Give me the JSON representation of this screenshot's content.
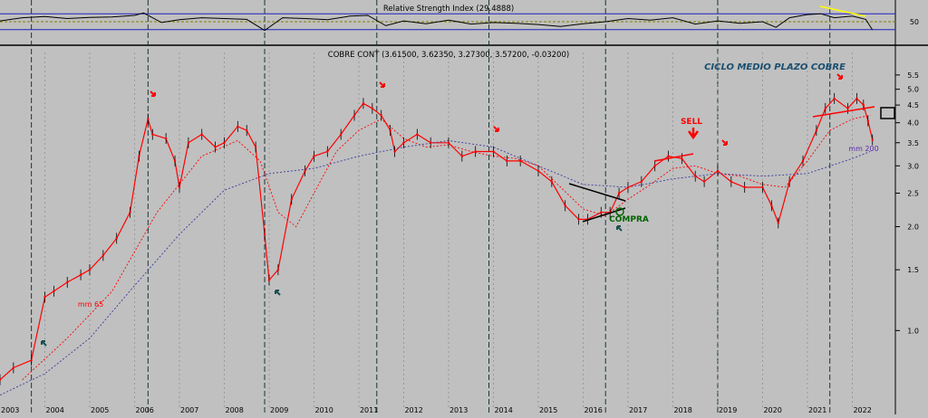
{
  "chart_data": [
    {
      "type": "line",
      "panel": "indicator",
      "title": "Relative Strength Index (29.4888)",
      "yticks": [
        50
      ],
      "reference_levels": [
        30,
        50,
        70
      ],
      "series": [
        {
          "name": "Relative Strength Index",
          "color": "#000000",
          "x": [
            2003.0,
            2003.5,
            2004.0,
            2004.5,
            2005.0,
            2005.5,
            2006.0,
            2006.2,
            2006.6,
            2007.0,
            2007.5,
            2008.0,
            2008.5,
            2008.8,
            2008.9,
            2009.3,
            2009.8,
            2010.3,
            2010.8,
            2011.2,
            2011.6,
            2012.0,
            2012.5,
            2013.0,
            2013.5,
            2014.0,
            2014.5,
            2015.0,
            2015.5,
            2016.0,
            2016.5,
            2017.0,
            2017.5,
            2018.0,
            2018.5,
            2019.0,
            2019.5,
            2020.0,
            2020.3,
            2020.6,
            2021.0,
            2021.3,
            2021.6,
            2022.0,
            2022.3,
            2022.45
          ],
          "y": [
            52,
            60,
            63,
            58,
            61,
            62,
            66,
            72,
            48,
            55,
            60,
            58,
            56,
            35,
            28,
            60,
            58,
            55,
            64,
            66,
            40,
            52,
            45,
            54,
            44,
            48,
            46,
            43,
            38,
            45,
            50,
            58,
            54,
            60,
            44,
            52,
            46,
            50,
            36,
            60,
            68,
            70,
            60,
            64,
            56,
            29.5
          ]
        }
      ]
    },
    {
      "type": "line",
      "panel": "price",
      "title": "COBRE CONT (3.61500, 3.62350, 3.27300, 3.57200, -0.03200)",
      "annotation_title": "CICLO MEDIO PLAZO COBRE",
      "y_scale": "log",
      "ylim": [
        0.6,
        6.2
      ],
      "xlim": [
        2003.0,
        2022.9
      ],
      "yticks": [
        1.0,
        1.5,
        2.0,
        2.5,
        3.0,
        3.5,
        4.0,
        4.5,
        5.0,
        5.5
      ],
      "ytick_labels": [
        "1.0",
        "1.5",
        "2.0",
        "2.5",
        "3.0",
        "3.5",
        "4.0",
        "4.5",
        "5.0",
        "5.5"
      ],
      "xticks": [
        2003,
        2004,
        2005,
        2006,
        2007,
        2008,
        2009,
        2010,
        2011,
        2012,
        2013,
        2014,
        2015,
        2016,
        2017,
        2018,
        2019,
        2020,
        2021,
        2022
      ],
      "xtick_labels": [
        "2003",
        "2004",
        "2005",
        "2006",
        "2007",
        "2008",
        "2009",
        "2010",
        "2011",
        "2012",
        "2013",
        "2014",
        "2015",
        "2016",
        "2017",
        "2018",
        "2019",
        "2020",
        "2021",
        "2022"
      ],
      "cycle_lines": [
        2003.7,
        2006.3,
        2008.9,
        2011.4,
        2013.9,
        2016.5,
        2019.0,
        2021.5
      ],
      "series": [
        {
          "name": "COBRE CONT",
          "color": "#ff0000",
          "x": [
            2003.0,
            2003.3,
            2003.7,
            2004.0,
            2004.2,
            2004.5,
            2004.8,
            2005.0,
            2005.3,
            2005.6,
            2005.9,
            2006.1,
            2006.3,
            2006.4,
            2006.7,
            2006.9,
            2007.0,
            2007.2,
            2007.5,
            2007.8,
            2008.0,
            2008.3,
            2008.5,
            2008.7,
            2008.9,
            2009.0,
            2009.2,
            2009.5,
            2009.8,
            2010.0,
            2010.3,
            2010.6,
            2010.9,
            2011.1,
            2011.3,
            2011.5,
            2011.7,
            2011.8,
            2012.0,
            2012.3,
            2012.6,
            2013.0,
            2013.3,
            2013.6,
            2014.0,
            2014.3,
            2014.6,
            2015.0,
            2015.3,
            2015.6,
            2015.9,
            2016.1,
            2016.4,
            2016.6,
            2016.8,
            2017.0,
            2017.3,
            2017.6,
            2017.9,
            2018.2,
            2018.5,
            2018.7,
            2019.0,
            2019.3,
            2019.6,
            2020.0,
            2020.2,
            2020.35,
            2020.6,
            2020.9,
            2021.2,
            2021.4,
            2021.6,
            2021.9,
            2022.1,
            2022.25,
            2022.35,
            2022.45
          ],
          "y": [
            0.72,
            0.78,
            0.82,
            1.25,
            1.3,
            1.38,
            1.45,
            1.5,
            1.65,
            1.85,
            2.2,
            3.2,
            4.1,
            3.7,
            3.6,
            3.1,
            2.6,
            3.5,
            3.7,
            3.4,
            3.5,
            3.9,
            3.8,
            3.4,
            1.9,
            1.4,
            1.5,
            2.4,
            2.9,
            3.2,
            3.3,
            3.7,
            4.2,
            4.55,
            4.4,
            4.2,
            3.8,
            3.3,
            3.5,
            3.7,
            3.5,
            3.5,
            3.2,
            3.3,
            3.3,
            3.1,
            3.1,
            2.9,
            2.7,
            2.3,
            2.1,
            2.1,
            2.2,
            2.2,
            2.5,
            2.6,
            2.7,
            3.0,
            3.2,
            3.15,
            2.8,
            2.7,
            2.9,
            2.7,
            2.6,
            2.6,
            2.3,
            2.05,
            2.7,
            3.1,
            3.8,
            4.4,
            4.7,
            4.4,
            4.7,
            4.5,
            4.05,
            3.57
          ]
        },
        {
          "name": "mm 65",
          "color": "#ff0000",
          "dashed": true,
          "x": [
            2003.5,
            2004.5,
            2005.5,
            2006.5,
            2007.5,
            2008.3,
            2008.8,
            2009.2,
            2009.6,
            2010.0,
            2010.5,
            2011.0,
            2011.5,
            2012.0,
            2012.5,
            2013.0,
            2013.5,
            2014.0,
            2014.5,
            2015.0,
            2015.5,
            2016.0,
            2016.5,
            2017.0,
            2017.5,
            2018.0,
            2018.5,
            2019.0,
            2019.5,
            2020.0,
            2020.5,
            2021.0,
            2021.5,
            2022.0,
            2022.4
          ],
          "y": [
            0.72,
            0.95,
            1.3,
            2.2,
            3.2,
            3.55,
            3.1,
            2.2,
            2.0,
            2.5,
            3.3,
            3.8,
            4.1,
            3.6,
            3.4,
            3.45,
            3.3,
            3.2,
            3.15,
            3.0,
            2.6,
            2.25,
            2.15,
            2.4,
            2.65,
            2.95,
            3.0,
            2.85,
            2.8,
            2.65,
            2.6,
            3.1,
            3.8,
            4.1,
            4.2
          ]
        },
        {
          "name": "mm 200",
          "color": "#3a3aa0",
          "dashed": true,
          "x": [
            2003.0,
            2004.0,
            2005.0,
            2006.0,
            2007.0,
            2008.0,
            2009.0,
            2010.0,
            2011.0,
            2012.0,
            2013.0,
            2014.0,
            2015.0,
            2016.0,
            2017.0,
            2018.0,
            2019.0,
            2020.0,
            2021.0,
            2022.0,
            2022.4
          ],
          "y": [
            0.65,
            0.75,
            0.95,
            1.35,
            1.9,
            2.55,
            2.85,
            2.95,
            3.2,
            3.4,
            3.55,
            3.4,
            3.0,
            2.65,
            2.6,
            2.75,
            2.85,
            2.8,
            2.85,
            3.15,
            3.3
          ]
        }
      ],
      "annotations": [
        {
          "text": "SELL",
          "x": 2018.2,
          "y": 3.85,
          "color": "#ff0000"
        },
        {
          "text": "COMPRA",
          "x": 2016.8,
          "y": 2.02,
          "color": "#006400"
        },
        {
          "text": "mm 65",
          "x": 2004.9,
          "y": 1.15,
          "color": "#ff0000"
        },
        {
          "text": "mm 200",
          "x": 2021.7,
          "y": 3.25,
          "color": "#5a2ab0"
        }
      ]
    }
  ]
}
